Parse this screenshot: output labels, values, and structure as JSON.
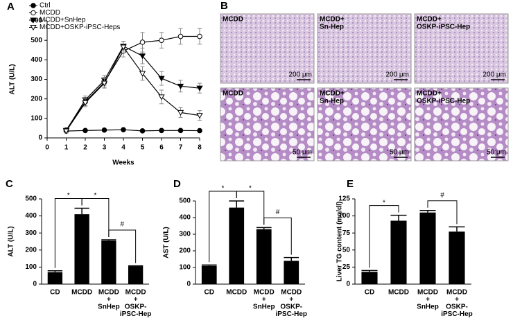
{
  "chart_data": [
    {
      "type": "line",
      "panel": "A",
      "x_label": "Weeks",
      "y_label": "ALT (U/L)",
      "xlim": [
        0,
        8
      ],
      "xticks": [
        0,
        1,
        2,
        3,
        4,
        5,
        6,
        7,
        8
      ],
      "ylim": [
        0,
        600
      ],
      "yticks": [
        0,
        100,
        200,
        300,
        400,
        500,
        600
      ],
      "legend": "upper left",
      "x": [
        1,
        2,
        3,
        4,
        5,
        6,
        7,
        8
      ],
      "series": [
        {
          "name": "Ctrl",
          "color": "#000000",
          "marker": "filled-circle",
          "values": [
            35,
            38,
            40,
            42,
            36,
            38,
            38,
            37
          ],
          "errors": [
            5,
            5,
            5,
            5,
            5,
            5,
            5,
            5
          ]
        },
        {
          "name": "MCDD",
          "color": "#000000",
          "marker": "open-circle",
          "values": [
            40,
            185,
            285,
            445,
            490,
            500,
            520,
            520
          ],
          "errors": [
            10,
            20,
            25,
            30,
            50,
            40,
            40,
            40
          ]
        },
        {
          "name": "MCDD+SnHep",
          "color": "#000000",
          "marker": "filled-triangle",
          "values": [
            38,
            195,
            295,
            470,
            420,
            305,
            265,
            255
          ],
          "errors": [
            10,
            20,
            25,
            25,
            40,
            35,
            30,
            25
          ]
        },
        {
          "name": "MCDD+OSKP-iPSC-Heps",
          "color": "#000000",
          "marker": "open-triangle",
          "values": [
            35,
            180,
            280,
            465,
            330,
            210,
            130,
            115
          ],
          "errors": [
            10,
            20,
            25,
            30,
            35,
            35,
            25,
            25
          ]
        }
      ]
    },
    {
      "type": "bar",
      "panel": "C",
      "y_label": "ALT (U/L)",
      "color": "#000000",
      "ylim": [
        0,
        500
      ],
      "yticks": [
        0,
        100,
        200,
        300,
        400,
        500
      ],
      "categories": [
        [
          "CD"
        ],
        [
          "MCDD"
        ],
        [
          "MCDD",
          "+",
          "SnHep"
        ],
        [
          "MCDD",
          "+",
          "OSKP-",
          "iPSC-Hep"
        ]
      ],
      "values": [
        70,
        410,
        255,
        105
      ],
      "errors": [
        8,
        35,
        5,
        2
      ],
      "annotations": [
        "*",
        "*",
        "#"
      ]
    },
    {
      "type": "bar",
      "panel": "D",
      "y_label": "AST (U/L)",
      "color": "#000000",
      "ylim": [
        0,
        500
      ],
      "yticks": [
        0,
        100,
        200,
        300,
        400,
        500
      ],
      "categories": [
        [
          "CD"
        ],
        [
          "MCDD"
        ],
        [
          "MCDD",
          "+",
          "SnHep"
        ],
        [
          "MCDD",
          "+",
          "OSKP-",
          "iPSC-Hep"
        ]
      ],
      "values": [
        110,
        460,
        330,
        140
      ],
      "errors": [
        5,
        40,
        10,
        20
      ],
      "annotations": [
        "*",
        "*",
        "#"
      ]
    },
    {
      "type": "bar",
      "panel": "E",
      "y_label": "Liver TG content (mg/dl)",
      "color": "#000000",
      "ylim": [
        0,
        125
      ],
      "yticks": [
        0,
        25,
        50,
        75,
        100,
        125
      ],
      "categories": [
        [
          "CD"
        ],
        [
          "MCDD"
        ],
        [
          "MCDD",
          "+",
          "SnHep"
        ],
        [
          "MCDD",
          "+",
          "OSKP-",
          "iPSC-Hep"
        ]
      ],
      "values": [
        18,
        93,
        105,
        77
      ],
      "errors": [
        2,
        8,
        3,
        7
      ],
      "annotations": [
        "*",
        "#"
      ]
    }
  ],
  "micrographs": {
    "panel": "B",
    "tiles": [
      [
        {
          "label": [
            "MCDD"
          ],
          "scale_bar": "200 μm"
        },
        {
          "label": [
            "MCDD+",
            "Sn-Hep"
          ],
          "scale_bar": "200 μm"
        },
        {
          "label": [
            "MCDD+",
            "OSKP-iPSC-Hep"
          ],
          "scale_bar": "200 μm"
        }
      ],
      [
        {
          "label": [
            "MCDD"
          ],
          "scale_bar": "50 μm"
        },
        {
          "label": [
            "MCDD+",
            "Sn-Hep"
          ],
          "scale_bar": "50 μm"
        },
        {
          "label": [
            "MCDD+",
            "OSKP-iPSC-Hep"
          ],
          "scale_bar": "50 μm"
        }
      ]
    ]
  }
}
